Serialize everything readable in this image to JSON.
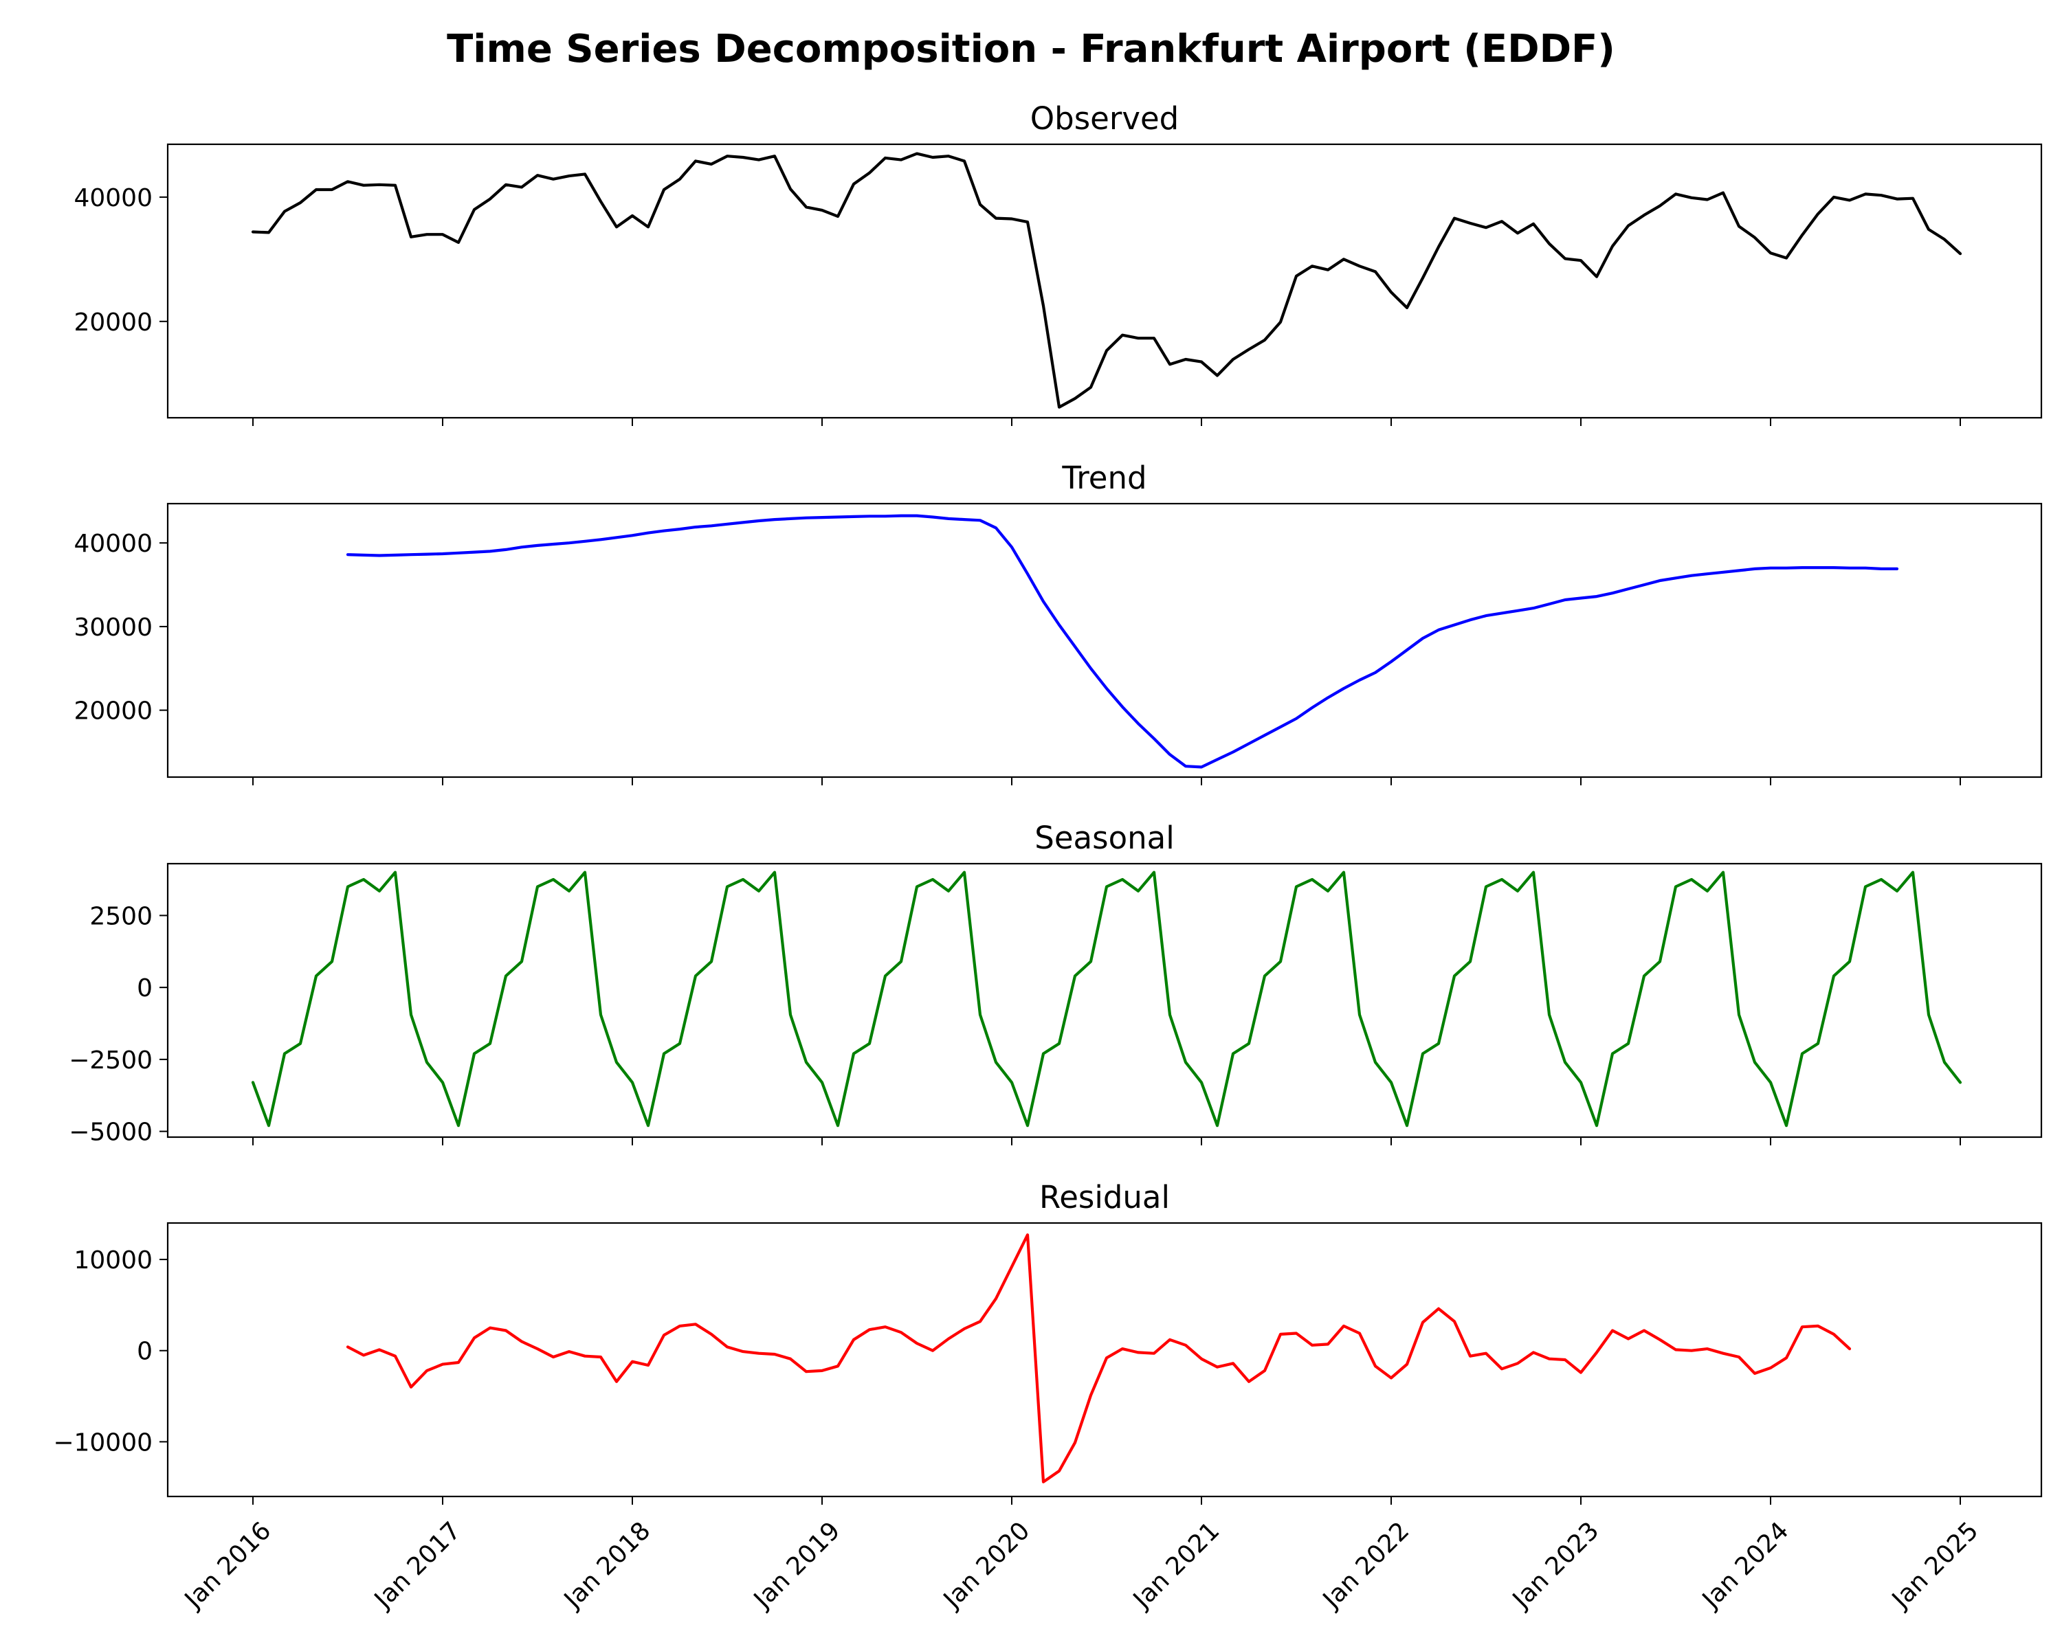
{
  "chart_data": {
    "title": "Time Series Decomposition - Frankfurt Airport (EDDF)",
    "type": "line",
    "x_tick_labels": [
      "Jan 2016",
      "Jan 2017",
      "Jan 2018",
      "Jan 2019",
      "Jan 2020",
      "Jan 2021",
      "Jan 2022",
      "Jan 2023",
      "Jan 2024",
      "Jan 2025"
    ],
    "x_start": "Jan 2016",
    "x_end": "Jan 2025",
    "panels": [
      {
        "title": "Observed",
        "color": "#000000",
        "ylim": [
          4500,
          48500
        ],
        "yticks": [
          20000,
          40000
        ],
        "ytick_labels": [
          "20000",
          "40000"
        ],
        "start_month": 0,
        "values": [
          34400,
          34300,
          37700,
          39100,
          41200,
          41200,
          42500,
          41900,
          42000,
          41900,
          33600,
          34000,
          34000,
          32700,
          38000,
          39700,
          42000,
          41600,
          43500,
          42900,
          43400,
          43700,
          39300,
          35200,
          37000,
          35200,
          41200,
          42900,
          45800,
          45300,
          46600,
          46400,
          46000,
          46600,
          41300,
          38400,
          37900,
          36900,
          42100,
          43900,
          46300,
          46000,
          47000,
          46400,
          46600,
          45800,
          38800,
          36600,
          36500,
          36000,
          22500,
          6200,
          7600,
          9400,
          15300,
          17800,
          17300,
          17300,
          13100,
          13900,
          13500,
          11300,
          13900,
          15500,
          17000,
          19900,
          27300,
          28900,
          28300,
          30000,
          28900,
          28000,
          24700,
          22200,
          27000,
          32000,
          36600,
          35800,
          35100,
          36100,
          34200,
          35700,
          32500,
          30100,
          29800,
          27200,
          32100,
          35400,
          37100,
          38600,
          40500,
          39900,
          39600,
          40700,
          35300,
          33500,
          31000,
          30200,
          33900,
          37300,
          40000,
          39500,
          40500,
          40300,
          39700,
          39800,
          34800,
          33200,
          30900
        ]
      },
      {
        "title": "Trend",
        "color": "#0000ff",
        "ylim": [
          12000,
          44700
        ],
        "yticks": [
          20000,
          30000,
          40000
        ],
        "ytick_labels": [
          "20000",
          "30000",
          "40000"
        ],
        "start_month": 6,
        "values": [
          38600,
          38550,
          38500,
          38550,
          38600,
          38650,
          38700,
          38800,
          38900,
          39000,
          39200,
          39500,
          39700,
          39850,
          40000,
          40200,
          40400,
          40650,
          40900,
          41200,
          41450,
          41650,
          41900,
          42050,
          42250,
          42450,
          42650,
          42800,
          42900,
          43000,
          43050,
          43100,
          43150,
          43200,
          43200,
          43250,
          43250,
          43100,
          42900,
          42800,
          42700,
          41800,
          39500,
          36300,
          33000,
          30200,
          27600,
          25000,
          22600,
          20400,
          18400,
          16600,
          14700,
          13300,
          13200,
          14100,
          15000,
          16000,
          17000,
          18000,
          19000,
          20300,
          21500,
          22600,
          23600,
          24500,
          25800,
          27200,
          28600,
          29600,
          30200,
          30800,
          31300,
          31600,
          31900,
          32200,
          32700,
          33200,
          33400,
          33600,
          34000,
          34500,
          35000,
          35500,
          35800,
          36100,
          36300,
          36500,
          36700,
          36900,
          37000,
          37000,
          37050,
          37050,
          37050,
          37000,
          37000,
          36900,
          36900
        ]
      },
      {
        "title": "Seasonal",
        "color": "#008000",
        "ylim": [
          -5200,
          4300
        ],
        "yticks": [
          -5000,
          -2500,
          0,
          2500
        ],
        "ytick_labels": [
          "−5000",
          "−2500",
          "0",
          "2500"
        ],
        "start_month": 0,
        "values": [
          -3300,
          -4800,
          -2300,
          -1950,
          400,
          900,
          3500,
          3750,
          3350,
          4000,
          -950,
          -2600,
          -3300,
          -4800,
          -2300,
          -1950,
          400,
          900,
          3500,
          3750,
          3350,
          4000,
          -950,
          -2600,
          -3300,
          -4800,
          -2300,
          -1950,
          400,
          900,
          3500,
          3750,
          3350,
          4000,
          -950,
          -2600,
          -3300,
          -4800,
          -2300,
          -1950,
          400,
          900,
          3500,
          3750,
          3350,
          4000,
          -950,
          -2600,
          -3300,
          -4800,
          -2300,
          -1950,
          400,
          900,
          3500,
          3750,
          3350,
          4000,
          -950,
          -2600,
          -3300,
          -4800,
          -2300,
          -1950,
          400,
          900,
          3500,
          3750,
          3350,
          4000,
          -950,
          -2600,
          -3300,
          -4800,
          -2300,
          -1950,
          400,
          900,
          3500,
          3750,
          3350,
          4000,
          -950,
          -2600,
          -3300,
          -4800,
          -2300,
          -1950,
          400,
          900,
          3500,
          3750,
          3350,
          4000,
          -950,
          -2600,
          -3300,
          -4800,
          -2300,
          -1950,
          400,
          900,
          3500,
          3750,
          3350,
          4000,
          -950,
          -2600,
          -3300
        ]
      },
      {
        "title": "Residual",
        "color": "#ff0000",
        "ylim": [
          -16000,
          14000
        ],
        "yticks": [
          -10000,
          0,
          10000
        ],
        "ytick_labels": [
          "−10000",
          "0",
          "10000"
        ],
        "start_month": 6,
        "values": [
          400,
          -500,
          100,
          -600,
          -4000,
          -2200,
          -1500,
          -1300,
          1400,
          2500,
          2200,
          1000,
          200,
          -700,
          -100,
          -600,
          -700,
          -3400,
          -1200,
          -1600,
          1700,
          2700,
          2900,
          1800,
          400,
          -100,
          -300,
          -400,
          -900,
          -2300,
          -2200,
          -1700,
          1200,
          2300,
          2600,
          2000,
          800,
          0,
          1300,
          2400,
          3200,
          5700,
          9200,
          12700,
          -14400,
          -13200,
          -10100,
          -4900,
          -800,
          200,
          -200,
          -300,
          1200,
          600,
          -900,
          -1800,
          -1400,
          -3400,
          -2200,
          1800,
          1900,
          600,
          700,
          2700,
          1900,
          -1700,
          -3000,
          -1500,
          3100,
          4600,
          3200,
          -600,
          -300,
          -2000,
          -1400,
          -200,
          -900,
          -1000,
          -2400,
          -200,
          2200,
          1300,
          2200,
          1200,
          100,
          0,
          200,
          -300,
          -700,
          -2500,
          -1900,
          -800,
          2600,
          2700,
          1800,
          200
        ]
      }
    ]
  }
}
